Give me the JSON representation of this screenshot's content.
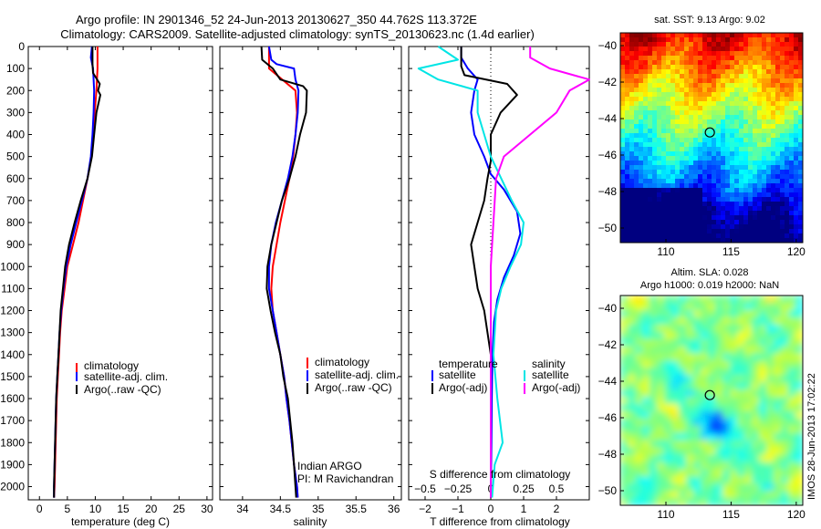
{
  "title": {
    "line1": "Argo profile: IN 2901346_52 24-Jun-2013 20130627_350 44.762S 113.372E",
    "line2": "Climatology: CARS2009. Satellite-adjusted climatology: synTS_20130623.nc (1.4d earlier)"
  },
  "credit": "IMOS 28-Jun-2013 17:02:22",
  "colors": {
    "climatology": "#ff0000",
    "satellite": "#0000ff",
    "argo": "#000000",
    "argo_adj": "#ff00ff",
    "salinity_sat": "#00e5e5"
  },
  "chart_data": [
    {
      "type": "line",
      "panel": "temperature",
      "xlabel": "temperature (deg C)",
      "ylabel": "",
      "xlim": [
        -2,
        31
      ],
      "ylim": [
        2060,
        0
      ],
      "xticks": [
        0,
        5,
        10,
        15,
        20,
        25,
        30
      ],
      "yticks": [
        0,
        100,
        200,
        300,
        400,
        500,
        600,
        700,
        800,
        900,
        1000,
        1100,
        1200,
        1300,
        1400,
        1500,
        1600,
        1700,
        1800,
        1900,
        2000
      ],
      "legend": [
        "climatology",
        "satellite-adj. clim.",
        "Argo(..raw -QC)"
      ],
      "series": [
        {
          "name": "climatology",
          "color": "#ff0000",
          "points": [
            [
              10.4,
              0
            ],
            [
              10.4,
              100
            ],
            [
              10.2,
              200
            ],
            [
              9.9,
              300
            ],
            [
              9.6,
              400
            ],
            [
              9.3,
              500
            ],
            [
              8.6,
              600
            ],
            [
              7.8,
              700
            ],
            [
              7.0,
              800
            ],
            [
              6.0,
              900
            ],
            [
              5.0,
              1000
            ],
            [
              4.5,
              1100
            ],
            [
              4.0,
              1200
            ],
            [
              3.7,
              1300
            ],
            [
              3.5,
              1400
            ],
            [
              3.3,
              1500
            ],
            [
              3.1,
              1600
            ],
            [
              3.0,
              1700
            ],
            [
              2.9,
              1800
            ],
            [
              2.8,
              1900
            ],
            [
              2.7,
              2000
            ],
            [
              2.6,
              2050
            ]
          ]
        },
        {
          "name": "satellite-adj. clim.",
          "color": "#0000ff",
          "points": [
            [
              9.4,
              0
            ],
            [
              9.2,
              50
            ],
            [
              9.6,
              100
            ],
            [
              9.8,
              200
            ],
            [
              9.7,
              300
            ],
            [
              9.5,
              400
            ],
            [
              9.2,
              500
            ],
            [
              8.6,
              600
            ],
            [
              7.6,
              700
            ],
            [
              6.6,
              800
            ],
            [
              5.6,
              900
            ],
            [
              4.8,
              1000
            ],
            [
              4.3,
              1100
            ],
            [
              3.9,
              1200
            ],
            [
              3.6,
              1300
            ],
            [
              3.4,
              1400
            ],
            [
              3.2,
              1500
            ],
            [
              3.0,
              1600
            ],
            [
              2.9,
              1700
            ],
            [
              2.8,
              1800
            ],
            [
              2.7,
              1900
            ],
            [
              2.6,
              2000
            ],
            [
              2.6,
              2050
            ]
          ]
        },
        {
          "name": "Argo(..raw -QC)",
          "color": "#000000",
          "points": [
            [
              9.5,
              0
            ],
            [
              9.5,
              80
            ],
            [
              9.6,
              120
            ],
            [
              10.8,
              170
            ],
            [
              10.5,
              200
            ],
            [
              10.9,
              220
            ],
            [
              10.2,
              300
            ],
            [
              9.8,
              400
            ],
            [
              9.4,
              500
            ],
            [
              8.6,
              600
            ],
            [
              7.4,
              700
            ],
            [
              6.3,
              800
            ],
            [
              5.3,
              900
            ],
            [
              4.6,
              1000
            ],
            [
              4.2,
              1100
            ],
            [
              3.8,
              1200
            ],
            [
              3.6,
              1300
            ],
            [
              3.4,
              1400
            ],
            [
              3.2,
              1500
            ],
            [
              3.0,
              1600
            ],
            [
              2.9,
              1700
            ],
            [
              2.8,
              1800
            ],
            [
              2.7,
              1900
            ],
            [
              2.6,
              2000
            ],
            [
              2.6,
              2050
            ]
          ]
        }
      ]
    },
    {
      "type": "line",
      "panel": "salinity",
      "xlabel": "salinity",
      "ylabel": "",
      "xlim": [
        33.7,
        36.1
      ],
      "ylim": [
        2060,
        0
      ],
      "xticks": [
        34,
        34.5,
        35,
        35.5,
        36
      ],
      "xtick_labels": [
        "34",
        "34.5",
        "35",
        "35.5",
        "36"
      ],
      "legend": [
        "climatology",
        "satellite-adj. clim.",
        "Argo(..raw -QC)"
      ],
      "annotation": [
        "Indian ARGO",
        "PI: M Ravichandran"
      ],
      "series": [
        {
          "name": "climatology",
          "color": "#ff0000",
          "points": [
            [
              34.35,
              0
            ],
            [
              34.35,
              100
            ],
            [
              34.7,
              200
            ],
            [
              34.72,
              300
            ],
            [
              34.7,
              400
            ],
            [
              34.67,
              500
            ],
            [
              34.62,
              600
            ],
            [
              34.56,
              700
            ],
            [
              34.5,
              800
            ],
            [
              34.45,
              900
            ],
            [
              34.4,
              1000
            ],
            [
              34.38,
              1100
            ],
            [
              34.4,
              1200
            ],
            [
              34.45,
              1300
            ],
            [
              34.5,
              1400
            ],
            [
              34.55,
              1500
            ],
            [
              34.58,
              1600
            ],
            [
              34.62,
              1700
            ],
            [
              34.65,
              1800
            ],
            [
              34.68,
              1900
            ],
            [
              34.72,
              2000
            ],
            [
              34.73,
              2050
            ]
          ]
        },
        {
          "name": "satellite-adj. clim.",
          "color": "#0000ff",
          "points": [
            [
              34.35,
              0
            ],
            [
              34.38,
              60
            ],
            [
              34.45,
              80
            ],
            [
              34.68,
              100
            ],
            [
              34.7,
              150
            ],
            [
              34.74,
              200
            ],
            [
              34.73,
              300
            ],
            [
              34.7,
              400
            ],
            [
              34.66,
              500
            ],
            [
              34.6,
              600
            ],
            [
              34.52,
              700
            ],
            [
              34.44,
              800
            ],
            [
              34.38,
              900
            ],
            [
              34.35,
              1000
            ],
            [
              34.35,
              1100
            ],
            [
              34.4,
              1200
            ],
            [
              34.45,
              1300
            ],
            [
              34.5,
              1400
            ],
            [
              34.55,
              1500
            ],
            [
              34.58,
              1600
            ],
            [
              34.62,
              1700
            ],
            [
              34.65,
              1800
            ],
            [
              34.68,
              1900
            ],
            [
              34.72,
              2000
            ],
            [
              34.73,
              2050
            ]
          ]
        },
        {
          "name": "Argo(..raw -QC)",
          "color": "#000000",
          "points": [
            [
              34.25,
              0
            ],
            [
              34.26,
              60
            ],
            [
              34.4,
              100
            ],
            [
              34.5,
              150
            ],
            [
              34.8,
              180
            ],
            [
              34.85,
              200
            ],
            [
              34.84,
              300
            ],
            [
              34.76,
              400
            ],
            [
              34.7,
              500
            ],
            [
              34.62,
              600
            ],
            [
              34.52,
              700
            ],
            [
              34.45,
              800
            ],
            [
              34.38,
              900
            ],
            [
              34.33,
              1000
            ],
            [
              34.32,
              1100
            ],
            [
              34.37,
              1200
            ],
            [
              34.43,
              1300
            ],
            [
              34.5,
              1400
            ],
            [
              34.54,
              1500
            ],
            [
              34.6,
              1600
            ],
            [
              34.63,
              1700
            ],
            [
              34.66,
              1800
            ],
            [
              34.68,
              1900
            ],
            [
              34.7,
              2000
            ],
            [
              34.71,
              2050
            ]
          ]
        }
      ]
    },
    {
      "type": "line",
      "panel": "difference",
      "xlabel": "T difference from climatology",
      "xlabel_top": "S difference from climatology",
      "xlim": [
        -2.5,
        3
      ],
      "ylim": [
        2060,
        0
      ],
      "xticks": [
        -2,
        -1,
        0,
        1,
        2
      ],
      "xticks_s": [
        -0.5,
        -0.25,
        0,
        0.25,
        0.5
      ],
      "xtick_labels_s": [
        "−0.5",
        "−0.25",
        "0",
        "0.25",
        "0.5"
      ],
      "legend": {
        "temperature_heading": "temperature",
        "salinity_heading": "salinity",
        "temperature": [
          "satellite",
          "Argo(-adj)"
        ],
        "salinity": [
          "satellite",
          "Argo(-adj)"
        ]
      },
      "series": [
        {
          "name": "satellite",
          "color": "#0000ff",
          "points": [
            [
              -0.9,
              0
            ],
            [
              -0.9,
              50
            ],
            [
              -0.7,
              100
            ],
            [
              -0.4,
              150
            ],
            [
              -0.5,
              200
            ],
            [
              -0.6,
              300
            ],
            [
              -0.5,
              400
            ],
            [
              -0.2,
              500
            ],
            [
              0,
              580
            ],
            [
              0.4,
              650
            ],
            [
              0.8,
              750
            ],
            [
              0.9,
              850
            ],
            [
              0.7,
              950
            ],
            [
              0.4,
              1050
            ],
            [
              0.2,
              1150
            ],
            [
              0.1,
              1250
            ],
            [
              0.05,
              1400
            ],
            [
              0.03,
              1600
            ],
            [
              0.02,
              1800
            ],
            [
              0,
              2050
            ]
          ]
        },
        {
          "name": "Argo(-adj)",
          "color": "#000000",
          "points": [
            [
              -0.9,
              0
            ],
            [
              -0.9,
              90
            ],
            [
              -0.8,
              130
            ],
            [
              0.5,
              170
            ],
            [
              0.8,
              220
            ],
            [
              0.3,
              300
            ],
            [
              0,
              400
            ],
            [
              0,
              520
            ],
            [
              -0.1,
              600
            ],
            [
              -0.2,
              700
            ],
            [
              -0.4,
              800
            ],
            [
              -0.6,
              900
            ],
            [
              -0.5,
              1000
            ],
            [
              -0.4,
              1100
            ],
            [
              -0.2,
              1200
            ],
            [
              -0.1,
              1300
            ],
            [
              0,
              1400
            ],
            [
              0,
              1600
            ],
            [
              0,
              1800
            ],
            [
              0,
              2050
            ]
          ]
        },
        {
          "name": "satellite",
          "color": "#00e5e5",
          "points": [
            [
              -0.4,
              0
            ],
            [
              -0.25,
              60
            ],
            [
              -0.55,
              100
            ],
            [
              -0.4,
              150
            ],
            [
              -0.1,
              200
            ],
            [
              -0.1,
              300
            ],
            [
              -0.05,
              400
            ],
            [
              0,
              500
            ],
            [
              0.08,
              600
            ],
            [
              0.16,
              700
            ],
            [
              0.25,
              800
            ],
            [
              0.23,
              900
            ],
            [
              0.15,
              1000
            ],
            [
              0.08,
              1100
            ],
            [
              0.04,
              1200
            ],
            [
              0.02,
              1400
            ],
            [
              0.05,
              1600
            ],
            [
              0.09,
              1800
            ],
            [
              0.03,
              1900
            ],
            [
              0.01,
              2050
            ]
          ]
        },
        {
          "name": "Argo(-adj)",
          "color": "#ff00ff",
          "points": [
            [
              0.3,
              0
            ],
            [
              0.3,
              50
            ],
            [
              0.45,
              100
            ],
            [
              0.75,
              150
            ],
            [
              0.6,
              200
            ],
            [
              0.5,
              300
            ],
            [
              0.3,
              400
            ],
            [
              0.1,
              500
            ],
            [
              0.04,
              600
            ],
            [
              0.02,
              800
            ],
            [
              0,
              1000
            ],
            [
              0,
              1200
            ],
            [
              0,
              1400
            ],
            [
              0,
              1600
            ],
            [
              0,
              1800
            ],
            [
              0,
              2050
            ]
          ]
        }
      ]
    },
    {
      "type": "heatmap",
      "panel": "sst_map",
      "title": "sat. SST: 9.13 Argo: 9.02",
      "xlim": [
        106.5,
        120.5
      ],
      "ylim": [
        -50.8,
        -39.3
      ],
      "xticks": [
        110,
        115,
        120
      ],
      "yticks": [
        -40,
        -42,
        -44,
        -46,
        -48,
        -50
      ],
      "marker": {
        "lon": 113.37,
        "lat": -44.76
      }
    },
    {
      "type": "heatmap",
      "panel": "sla_map",
      "title": [
        "Altim. SLA: 0.028",
        "Argo h1000: 0.019 h2000: NaN"
      ],
      "xlim": [
        106.5,
        120.5
      ],
      "ylim": [
        -50.8,
        -39.3
      ],
      "xticks": [
        110,
        115,
        120
      ],
      "yticks": [
        -40,
        -42,
        -44,
        -46,
        -48,
        -50
      ],
      "marker": {
        "lon": 113.37,
        "lat": -44.76
      }
    }
  ]
}
